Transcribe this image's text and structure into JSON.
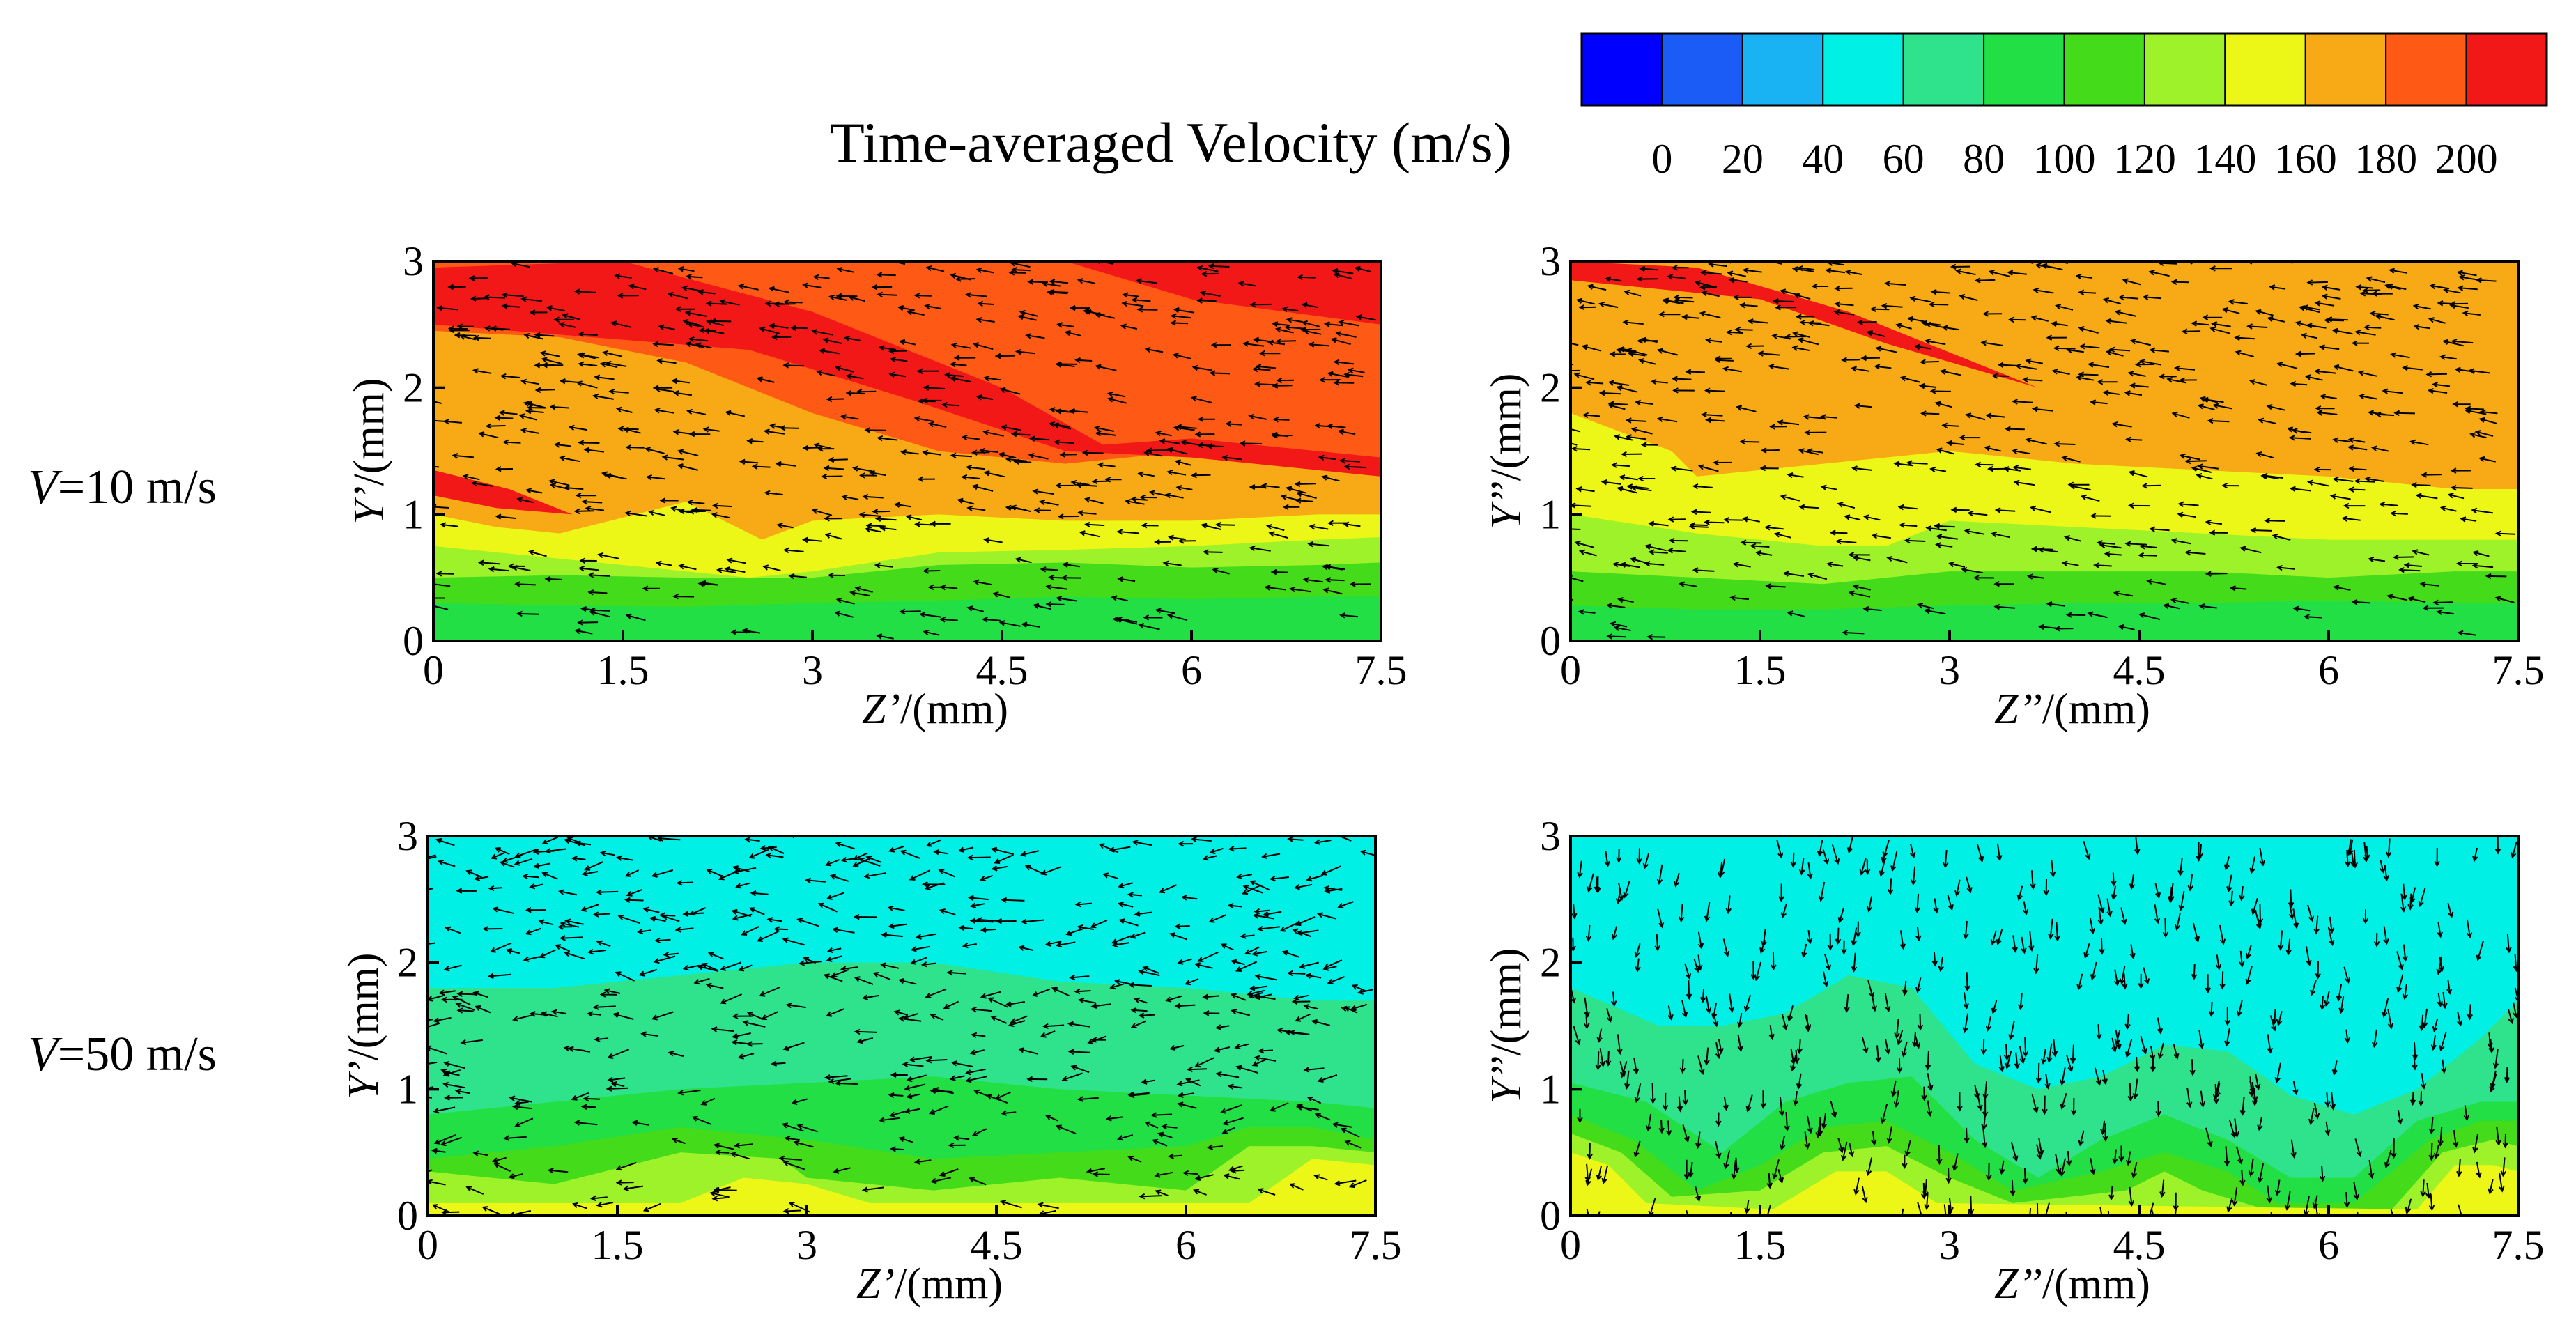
{
  "colorbar": {
    "title": "Time-averaged Velocity (m/s)",
    "levels": [
      0,
      20,
      40,
      60,
      80,
      100,
      120,
      140,
      160,
      180,
      200
    ],
    "colors": [
      "#0000ff",
      "#1a5cf5",
      "#19b2f2",
      "#00f0e6",
      "#2ee38c",
      "#22df45",
      "#43db1a",
      "#9df22a",
      "#ecf718",
      "#f7aa15",
      "#ff5a15",
      "#f21818"
    ]
  },
  "rows": [
    {
      "label_var": "V",
      "label_value": "=10 m/s"
    },
    {
      "label_var": "V",
      "label_value": "=50 m/s"
    }
  ],
  "chart_data": [
    {
      "type": "heatmap",
      "xlabel": "Z’/(mm)",
      "ylabel": "Y’/(mm)",
      "xticks": [
        "0",
        "1.5",
        "3",
        "4.5",
        "6",
        "7.5"
      ],
      "yticks": [
        "0",
        "1",
        "2",
        "3"
      ],
      "xlim": [
        0,
        7.5
      ],
      "ylim": [
        0,
        3
      ],
      "grid": false,
      "bands": [
        {
          "level": 100,
          "pts": [
            [
              0,
              0.3
            ],
            [
              1,
              0.28
            ],
            [
              2,
              0.27
            ],
            [
              3,
              0.3
            ],
            [
              4,
              0.32
            ],
            [
              5,
              0.35
            ],
            [
              6,
              0.33
            ],
            [
              7,
              0.35
            ],
            [
              7.5,
              0.35
            ]
          ]
        },
        {
          "level": 120,
          "pts": [
            [
              0,
              0.5
            ],
            [
              1,
              0.52
            ],
            [
              2,
              0.5
            ],
            [
              3,
              0.5
            ],
            [
              4,
              0.6
            ],
            [
              5,
              0.62
            ],
            [
              6,
              0.58
            ],
            [
              7,
              0.6
            ],
            [
              7.5,
              0.62
            ]
          ]
        },
        {
          "level": 140,
          "pts": [
            [
              0,
              0.75
            ],
            [
              1,
              0.65
            ],
            [
              2,
              0.55
            ],
            [
              2.5,
              0.5
            ],
            [
              3,
              0.55
            ],
            [
              4,
              0.7
            ],
            [
              5,
              0.72
            ],
            [
              6,
              0.75
            ],
            [
              7,
              0.8
            ],
            [
              7.5,
              0.82
            ]
          ]
        },
        {
          "level": 160,
          "pts": [
            [
              0,
              1.0
            ],
            [
              0.5,
              0.9
            ],
            [
              1,
              0.85
            ],
            [
              2,
              1.1
            ],
            [
              2.6,
              0.8
            ],
            [
              3,
              0.95
            ],
            [
              4,
              1.0
            ],
            [
              5,
              0.95
            ],
            [
              6,
              0.95
            ],
            [
              7,
              1.0
            ],
            [
              7.5,
              1.0
            ]
          ]
        },
        {
          "level": 180,
          "pts": [
            [
              0,
              2.45
            ],
            [
              1,
              2.4
            ],
            [
              2,
              2.2
            ],
            [
              3,
              1.8
            ],
            [
              4,
              1.5
            ],
            [
              5,
              1.4
            ],
            [
              6,
              1.5
            ],
            [
              7,
              1.35
            ],
            [
              7.5,
              1.3
            ]
          ]
        }
      ]
    },
    {
      "type": "heatmap",
      "xlabel": "Z’’/(mm)",
      "ylabel": "Y’’/(mm)",
      "xticks": [
        "0",
        "1.5",
        "3",
        "4.5",
        "6",
        "7.5"
      ],
      "yticks": [
        "0",
        "1",
        "2",
        "3"
      ],
      "xlim": [
        0,
        7.5
      ],
      "ylim": [
        0,
        3
      ],
      "grid": false,
      "bands": [
        {
          "level": 100,
          "pts": [
            [
              0,
              0.28
            ],
            [
              1,
              0.25
            ],
            [
              2,
              0.25
            ],
            [
              3,
              0.28
            ],
            [
              4,
              0.3
            ],
            [
              5,
              0.3
            ],
            [
              6,
              0.32
            ],
            [
              7,
              0.3
            ],
            [
              7.5,
              0.3
            ]
          ]
        },
        {
          "level": 120,
          "pts": [
            [
              0,
              0.55
            ],
            [
              1,
              0.5
            ],
            [
              2,
              0.45
            ],
            [
              3,
              0.55
            ],
            [
              4,
              0.55
            ],
            [
              5,
              0.55
            ],
            [
              6,
              0.5
            ],
            [
              7,
              0.55
            ],
            [
              7.5,
              0.55
            ]
          ]
        },
        {
          "level": 140,
          "pts": [
            [
              0,
              1.0
            ],
            [
              1,
              0.85
            ],
            [
              2,
              0.75
            ],
            [
              2.5,
              0.75
            ],
            [
              3,
              0.95
            ],
            [
              4,
              0.9
            ],
            [
              5,
              0.85
            ],
            [
              6,
              0.8
            ],
            [
              7,
              0.8
            ],
            [
              7.5,
              0.8
            ]
          ]
        },
        {
          "level": 160,
          "pts": [
            [
              0,
              1.8
            ],
            [
              0.8,
              1.5
            ],
            [
              1,
              1.3
            ],
            [
              2,
              1.4
            ],
            [
              3,
              1.5
            ],
            [
              4,
              1.4
            ],
            [
              5,
              1.35
            ],
            [
              6,
              1.3
            ],
            [
              7,
              1.2
            ],
            [
              7.5,
              1.2
            ]
          ]
        }
      ]
    },
    {
      "type": "heatmap",
      "xlabel": "Z’/(mm)",
      "ylabel": "Y’/(mm)",
      "xticks": [
        "0",
        "1.5",
        "3",
        "4.5",
        "6",
        "7.5"
      ],
      "yticks": [
        "0",
        "1",
        "2",
        "3"
      ],
      "xlim": [
        0,
        7.5
      ],
      "ylim": [
        0,
        3
      ],
      "grid": false,
      "bands": [
        {
          "level": 60,
          "pts": [
            [
              0,
              1.8
            ],
            [
              1,
              1.8
            ],
            [
              2,
              1.9
            ],
            [
              3,
              2.0
            ],
            [
              4,
              2.0
            ],
            [
              5,
              1.85
            ],
            [
              6,
              1.8
            ],
            [
              7,
              1.7
            ],
            [
              7.5,
              1.7
            ]
          ]
        },
        {
          "level": 80,
          "pts": [
            [
              0,
              0.8
            ],
            [
              1,
              0.9
            ],
            [
              2,
              1.0
            ],
            [
              3,
              1.05
            ],
            [
              4,
              1.1
            ],
            [
              5,
              1.0
            ],
            [
              6,
              0.95
            ],
            [
              7,
              0.9
            ],
            [
              7.5,
              0.85
            ]
          ]
        },
        {
          "level": 100,
          "pts": [
            [
              0,
              0.45
            ],
            [
              1,
              0.55
            ],
            [
              2,
              0.7
            ],
            [
              3,
              0.6
            ],
            [
              4,
              0.45
            ],
            [
              5,
              0.5
            ],
            [
              6,
              0.55
            ],
            [
              6.5,
              0.7
            ],
            [
              7,
              0.7
            ],
            [
              7.5,
              0.6
            ]
          ]
        },
        {
          "level": 120,
          "pts": [
            [
              0,
              0.35
            ],
            [
              1,
              0.25
            ],
            [
              2,
              0.5
            ],
            [
              2.8,
              0.45
            ],
            [
              3,
              0.3
            ],
            [
              4,
              0.2
            ],
            [
              5,
              0.3
            ],
            [
              6,
              0.2
            ],
            [
              6.5,
              0.55
            ],
            [
              7,
              0.55
            ],
            [
              7.5,
              0.5
            ]
          ]
        },
        {
          "level": 140,
          "pts": [
            [
              0,
              0.1
            ],
            [
              2,
              0.1
            ],
            [
              2.5,
              0.3
            ],
            [
              3,
              0.25
            ],
            [
              3.5,
              0.1
            ],
            [
              6.5,
              0.1
            ],
            [
              7,
              0.45
            ],
            [
              7.5,
              0.4
            ]
          ]
        }
      ]
    },
    {
      "type": "heatmap",
      "xlabel": "Z’’/(mm)",
      "ylabel": "Y’’/(mm)",
      "xticks": [
        "0",
        "1.5",
        "3",
        "4.5",
        "6",
        "7.5"
      ],
      "yticks": [
        "0",
        "1",
        "2",
        "3"
      ],
      "xlim": [
        0,
        7.5
      ],
      "ylim": [
        0,
        3
      ],
      "grid": false,
      "bands": [
        {
          "level": 60,
          "pts": [
            [
              0,
              1.8
            ],
            [
              0.7,
              1.5
            ],
            [
              1.2,
              1.5
            ],
            [
              1.7,
              1.6
            ],
            [
              2.2,
              1.9
            ],
            [
              2.7,
              1.8
            ],
            [
              3.2,
              1.2
            ],
            [
              3.7,
              1.0
            ],
            [
              4.2,
              1.1
            ],
            [
              4.7,
              1.35
            ],
            [
              5.2,
              1.3
            ],
            [
              5.7,
              0.95
            ],
            [
              6.2,
              0.8
            ],
            [
              6.7,
              1.0
            ],
            [
              7.2,
              1.4
            ],
            [
              7.5,
              1.7
            ]
          ]
        },
        {
          "level": 80,
          "pts": [
            [
              0,
              1.05
            ],
            [
              0.6,
              0.9
            ],
            [
              1.2,
              0.5
            ],
            [
              1.7,
              0.9
            ],
            [
              2.2,
              1.05
            ],
            [
              2.7,
              1.1
            ],
            [
              3.2,
              0.6
            ],
            [
              3.7,
              0.3
            ],
            [
              4.2,
              0.6
            ],
            [
              4.7,
              0.8
            ],
            [
              5.2,
              0.6
            ],
            [
              5.7,
              0.3
            ],
            [
              6.2,
              0.3
            ],
            [
              6.7,
              0.75
            ],
            [
              7.2,
              0.9
            ],
            [
              7.5,
              0.9
            ]
          ]
        },
        {
          "level": 100,
          "pts": [
            [
              0,
              0.8
            ],
            [
              0.5,
              0.6
            ],
            [
              1.0,
              0.2
            ],
            [
              1.5,
              0.4
            ],
            [
              2.0,
              0.7
            ],
            [
              2.5,
              0.75
            ],
            [
              3.0,
              0.5
            ],
            [
              3.5,
              0.2
            ],
            [
              4.2,
              0.35
            ],
            [
              4.7,
              0.5
            ],
            [
              5.2,
              0.35
            ],
            [
              5.6,
              0.1
            ],
            [
              6.2,
              0.1
            ],
            [
              6.8,
              0.6
            ],
            [
              7.2,
              0.75
            ],
            [
              7.5,
              0.75
            ]
          ]
        },
        {
          "level": 120,
          "pts": [
            [
              0,
              0.65
            ],
            [
              0.4,
              0.5
            ],
            [
              0.8,
              0.15
            ],
            [
              1.5,
              0.2
            ],
            [
              2.0,
              0.5
            ],
            [
              2.5,
              0.55
            ],
            [
              3.0,
              0.3
            ],
            [
              3.5,
              0.1
            ],
            [
              4.4,
              0.2
            ],
            [
              4.7,
              0.35
            ],
            [
              5.0,
              0.2
            ],
            [
              5.5,
              0.05
            ],
            [
              6.5,
              0.05
            ],
            [
              6.9,
              0.5
            ],
            [
              7.3,
              0.6
            ],
            [
              7.5,
              0.55
            ]
          ]
        },
        {
          "level": 140,
          "pts": [
            [
              0,
              0.5
            ],
            [
              0.3,
              0.4
            ],
            [
              0.6,
              0.1
            ],
            [
              1.6,
              0.05
            ],
            [
              2.1,
              0.35
            ],
            [
              2.5,
              0.35
            ],
            [
              2.9,
              0.1
            ],
            [
              6.7,
              0.05
            ],
            [
              7.0,
              0.4
            ],
            [
              7.3,
              0.4
            ],
            [
              7.5,
              0.35
            ]
          ]
        }
      ]
    }
  ]
}
